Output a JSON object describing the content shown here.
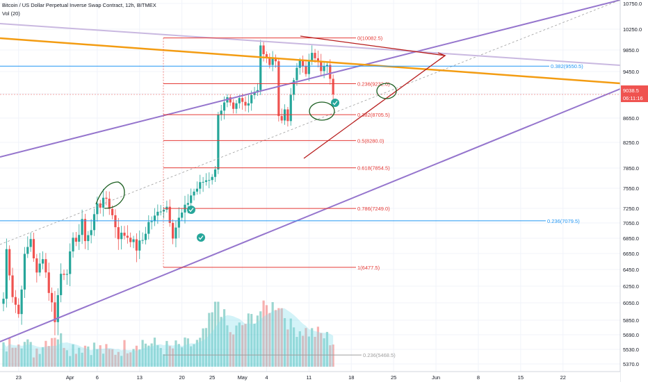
{
  "header": {
    "title": "Bitcoin / US Dollar Perpetual Inverse Swap Contract, 12h, BITMEX",
    "volume_label": "Vol (20)"
  },
  "chart_data": {
    "type": "candlestick",
    "symbol": "Bitcoin / US Dollar Perpetual Inverse Swap Contract",
    "interval": "12h",
    "exchange": "BITMEX",
    "price_axis": {
      "min": 5250,
      "max": 10850,
      "ticks": [
        10750,
        10250,
        9850,
        9450,
        9050,
        8650,
        8250,
        7850,
        7550,
        7250,
        7050,
        6850,
        6650,
        6450,
        6250,
        6050,
        5850,
        5690,
        5530,
        5370
      ]
    },
    "x_axis": {
      "ticks": [
        {
          "label": "23",
          "index": 5
        },
        {
          "label": "Apr",
          "index": 22
        },
        {
          "label": "6",
          "index": 31
        },
        {
          "label": "13",
          "index": 45
        },
        {
          "label": "20",
          "index": 59
        },
        {
          "label": "25",
          "index": 69
        },
        {
          "label": "May",
          "index": 79
        },
        {
          "label": "4",
          "index": 87
        },
        {
          "label": "11",
          "index": 101
        },
        {
          "label": "18",
          "index": 115
        },
        {
          "label": "25",
          "index": 129
        },
        {
          "label": "Jun",
          "index": 143
        },
        {
          "label": "8",
          "index": 157
        },
        {
          "label": "15",
          "index": 171
        },
        {
          "label": "22",
          "index": 185
        }
      ]
    },
    "current_price": {
      "value": "9038.5",
      "countdown": "06:11:16"
    },
    "anchors": [
      {
        "i": 0,
        "p": 6100
      },
      {
        "i": 1,
        "p": 6700
      },
      {
        "i": 3,
        "p": 6150
      },
      {
        "i": 5,
        "p": 5920
      },
      {
        "i": 7,
        "p": 6600
      },
      {
        "i": 9,
        "p": 6850
      },
      {
        "i": 11,
        "p": 6380
      },
      {
        "i": 13,
        "p": 6630
      },
      {
        "i": 15,
        "p": 6200
      },
      {
        "i": 17,
        "p": 5870
      },
      {
        "i": 19,
        "p": 6400
      },
      {
        "i": 21,
        "p": 6450
      },
      {
        "i": 23,
        "p": 6800
      },
      {
        "i": 25,
        "p": 6900
      },
      {
        "i": 26,
        "p": 7050
      },
      {
        "i": 27,
        "p": 6850
      },
      {
        "i": 29,
        "p": 6950
      },
      {
        "i": 31,
        "p": 7350
      },
      {
        "i": 32,
        "p": 7300
      },
      {
        "i": 34,
        "p": 7400
      },
      {
        "i": 36,
        "p": 7150
      },
      {
        "i": 38,
        "p": 6880
      },
      {
        "i": 40,
        "p": 6900
      },
      {
        "i": 42,
        "p": 6850
      },
      {
        "i": 44,
        "p": 6720
      },
      {
        "i": 46,
        "p": 6830
      },
      {
        "i": 48,
        "p": 7050
      },
      {
        "i": 50,
        "p": 7120
      },
      {
        "i": 52,
        "p": 7250
      },
      {
        "i": 54,
        "p": 7280
      },
      {
        "i": 55,
        "p": 7100
      },
      {
        "i": 56,
        "p": 6900
      },
      {
        "i": 58,
        "p": 7100
      },
      {
        "i": 60,
        "p": 7250
      },
      {
        "i": 62,
        "p": 7450
      },
      {
        "i": 64,
        "p": 7550
      },
      {
        "i": 66,
        "p": 7650
      },
      {
        "i": 68,
        "p": 7700
      },
      {
        "i": 70,
        "p": 7800
      },
      {
        "i": 71,
        "p": 8750
      },
      {
        "i": 72,
        "p": 8800
      },
      {
        "i": 74,
        "p": 8950
      },
      {
        "i": 76,
        "p": 8750
      },
      {
        "i": 78,
        "p": 8950
      },
      {
        "i": 80,
        "p": 8850
      },
      {
        "i": 82,
        "p": 9050
      },
      {
        "i": 84,
        "p": 9150
      },
      {
        "i": 85,
        "p": 9950
      },
      {
        "i": 86,
        "p": 9750
      },
      {
        "i": 88,
        "p": 9600
      },
      {
        "i": 90,
        "p": 9700
      },
      {
        "i": 91,
        "p": 8700
      },
      {
        "i": 92,
        "p": 8600
      },
      {
        "i": 93,
        "p": 8800
      },
      {
        "i": 94,
        "p": 8650
      },
      {
        "i": 96,
        "p": 9300
      },
      {
        "i": 98,
        "p": 9650
      },
      {
        "i": 100,
        "p": 9450
      },
      {
        "i": 102,
        "p": 9750
      },
      {
        "i": 104,
        "p": 9700
      },
      {
        "i": 105,
        "p": 9500
      },
      {
        "i": 107,
        "p": 9550
      },
      {
        "i": 108,
        "p": 9300
      },
      {
        "i": 109,
        "p": 9038
      }
    ],
    "volume_anchors": [
      {
        "i": 0,
        "v": 14
      },
      {
        "i": 5,
        "v": 26
      },
      {
        "i": 10,
        "v": 12
      },
      {
        "i": 17,
        "v": 30
      },
      {
        "i": 22,
        "v": 16
      },
      {
        "i": 28,
        "v": 18
      },
      {
        "i": 35,
        "v": 10
      },
      {
        "i": 45,
        "v": 22
      },
      {
        "i": 55,
        "v": 14
      },
      {
        "i": 65,
        "v": 20
      },
      {
        "i": 71,
        "v": 62
      },
      {
        "i": 75,
        "v": 28
      },
      {
        "i": 85,
        "v": 52
      },
      {
        "i": 91,
        "v": 60
      },
      {
        "i": 95,
        "v": 36
      },
      {
        "i": 105,
        "v": 28
      },
      {
        "i": 109,
        "v": 22
      }
    ],
    "fibonacci": {
      "color": "#e53935",
      "levels": [
        {
          "label": "0(10082.5)",
          "price": 10082.5
        },
        {
          "label": "0.236(9232.0)",
          "price": 9232.0
        },
        {
          "label": "0.382(8705.5)",
          "price": 8705.5
        },
        {
          "label": "0.5(8280.0)",
          "price": 8280.0
        },
        {
          "label": "0.618(7854.5)",
          "price": 7854.5
        },
        {
          "label": "0.786(7249.0)",
          "price": 7249.0
        },
        {
          "label": "1(6477.5)",
          "price": 6477.5
        }
      ]
    },
    "horizontal_lines": [
      {
        "label": "0.382(9550.5)",
        "price": 9550.5,
        "color": "#2196f3"
      },
      {
        "label": "0.236(7079.5)",
        "price": 7079.5,
        "color": "#2196f3"
      },
      {
        "label": "0.236(5468.5)",
        "price": 5468.5,
        "color": "#9e9e9e"
      }
    ],
    "colors": {
      "up": "#26a69a",
      "down": "#ef5350",
      "channel": "#9575cd",
      "trendline": "#f39c12",
      "lavender": "#c9b8e0",
      "wedge": "#b71c1c",
      "axis_text": "#131722",
      "grid": "#f0f3fa"
    }
  }
}
